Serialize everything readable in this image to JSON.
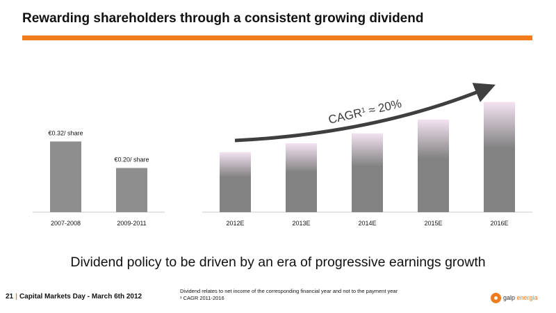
{
  "slide": {
    "title": "Rewarding shareholders through a consistent growing dividend",
    "tagline": "Dividend policy to be driven by an era of progressive earnings growth",
    "page_number": "21",
    "event": "Capital Markets Day - March 6th 2012",
    "footnote_line1": "Dividend relates to net income of the corresponding financial year and not to the payment year",
    "footnote_line2": "¹ CAGR 2011-2016",
    "logo_name": "galp",
    "logo_suffix": "energia"
  },
  "colors": {
    "accent": "#f07c1e",
    "bar_historic": "#8e8e8e",
    "bar_forecast": "#828282",
    "bar_forecast_top": "#f3e3f1",
    "arrow": "#3f3f3f",
    "axis": "#c8c8c8"
  },
  "chart_data": [
    {
      "type": "bar",
      "categories": [
        "2007-2008",
        "2009-2011"
      ],
      "values": [
        0.32,
        0.2
      ],
      "data_labels": [
        "€0.32/ share",
        "€0.20/ share"
      ],
      "ylim": [
        0,
        0.4
      ]
    },
    {
      "type": "bar",
      "categories": [
        "2012E",
        "2013E",
        "2014E",
        "2015E",
        "2016E"
      ],
      "values": [
        0.24,
        0.275,
        0.315,
        0.37,
        0.44
      ],
      "ylim": [
        0,
        0.5
      ],
      "annotation": {
        "text_main": "CAGR",
        "text_sup": "1",
        "text_rest": " ≈ 20%"
      },
      "trend_arrow": true
    }
  ]
}
